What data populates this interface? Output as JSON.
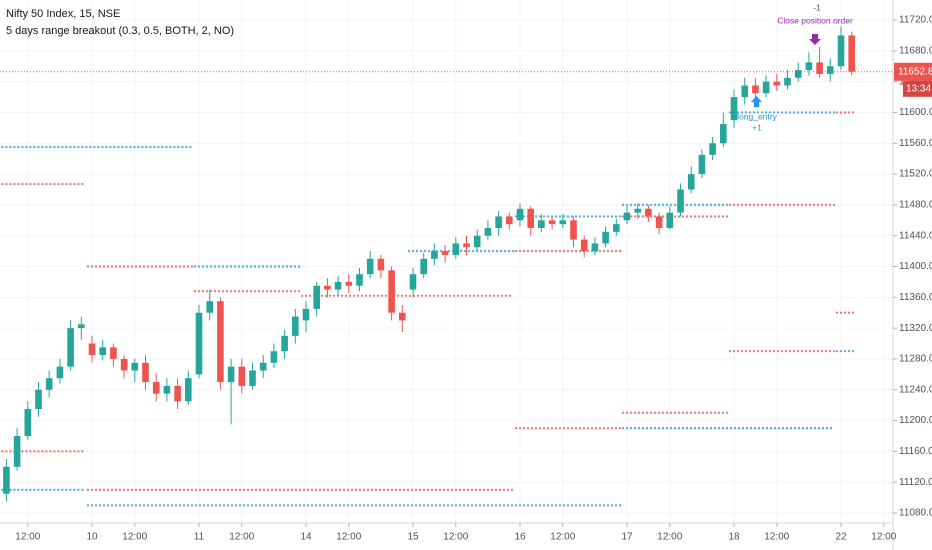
{
  "chart_data": {
    "type": "candlestick",
    "title": "Nifty 50 Index, 15, NSE",
    "subtitle": "5 days range breakout (0.3, 0.5, BOTH, 2, NO)",
    "categories": [
      null,
      null,
      "12:00",
      null,
      null,
      null,
      null,
      null,
      "10",
      null,
      null,
      null,
      "12:00",
      null,
      null,
      null,
      null,
      null,
      "11",
      null,
      null,
      null,
      "12:00",
      null,
      null,
      null,
      null,
      null,
      "14",
      null,
      null,
      null,
      "12:00",
      null,
      null,
      null,
      null,
      null,
      "15",
      null,
      null,
      null,
      "12:00",
      null,
      null,
      null,
      null,
      null,
      "16",
      null,
      null,
      null,
      "12:00",
      null,
      null,
      null,
      null,
      null,
      "17",
      null,
      null,
      null,
      "12:00",
      null,
      null,
      null,
      null,
      null,
      "18",
      null,
      null,
      null,
      "12:00",
      null,
      null,
      null,
      null,
      null,
      "22",
      null,
      null,
      null,
      "12:00",
      null
    ],
    "open": [
      11105,
      11140,
      11180,
      11215,
      11240,
      11255,
      11270,
      11320,
      11300,
      11285,
      11295,
      11280,
      11265,
      11275,
      11250,
      11235,
      11245,
      11225,
      11260,
      11340,
      11355,
      11250,
      11270,
      11245,
      11265,
      11275,
      11290,
      11310,
      11330,
      11345,
      11375,
      11370,
      11380,
      11375,
      11390,
      11410,
      11395,
      11340,
      11370,
      11390,
      11410,
      11420,
      11415,
      11430,
      11425,
      11440,
      11450,
      11465,
      11460,
      11475,
      11450,
      11460,
      11455,
      11460,
      11435,
      11420,
      11430,
      11445,
      11460,
      11470,
      11475,
      11465,
      11450,
      11470,
      11500,
      11520,
      11545,
      11560,
      11590,
      11620,
      11635,
      11625,
      11640,
      11635,
      11645,
      11655,
      11665,
      11650,
      11660,
      11700,
      null,
      null,
      null,
      null
    ],
    "high": [
      11150,
      11190,
      11225,
      11250,
      11265,
      11280,
      11330,
      11335,
      11310,
      11305,
      11300,
      11285,
      11280,
      11285,
      11262,
      11255,
      11255,
      11265,
      11350,
      11370,
      11360,
      11280,
      11280,
      11275,
      11285,
      11300,
      11318,
      11345,
      11355,
      11380,
      11385,
      11388,
      11390,
      11398,
      11420,
      11415,
      11400,
      11350,
      11398,
      11418,
      11430,
      11428,
      11438,
      11440,
      11448,
      11460,
      11472,
      11470,
      11482,
      11478,
      11468,
      11465,
      11468,
      11465,
      11440,
      11438,
      11452,
      11462,
      11478,
      11482,
      11480,
      11470,
      11478,
      11508,
      11530,
      11552,
      11568,
      11600,
      11630,
      11645,
      11645,
      11648,
      11650,
      11655,
      11665,
      11678,
      11685,
      11670,
      11712,
      11705,
      null,
      null,
      null,
      null
    ],
    "low": [
      11095,
      11135,
      11175,
      11205,
      11230,
      11248,
      11265,
      11305,
      11275,
      11278,
      11270,
      11255,
      11250,
      11240,
      11225,
      11225,
      11215,
      11220,
      11255,
      11330,
      11240,
      11195,
      11235,
      11240,
      11255,
      11268,
      11280,
      11300,
      11315,
      11335,
      11360,
      11362,
      11365,
      11368,
      11385,
      11385,
      11330,
      11315,
      11360,
      11385,
      11402,
      11405,
      11410,
      11415,
      11420,
      11435,
      11440,
      11448,
      11452,
      11440,
      11445,
      11448,
      11450,
      11425,
      11412,
      11415,
      11425,
      11440,
      11455,
      11462,
      11458,
      11442,
      11448,
      11465,
      11495,
      11515,
      11538,
      11555,
      11580,
      11610,
      11615,
      11620,
      11628,
      11630,
      11640,
      11648,
      11645,
      11640,
      11655,
      11648,
      null,
      null,
      null,
      null
    ],
    "close": [
      11140,
      11180,
      11215,
      11240,
      11255,
      11270,
      11320,
      11325,
      11285,
      11295,
      11280,
      11265,
      11275,
      11250,
      11235,
      11245,
      11225,
      11255,
      11340,
      11355,
      11250,
      11270,
      11245,
      11265,
      11275,
      11290,
      11310,
      11335,
      11345,
      11375,
      11370,
      11380,
      11375,
      11390,
      11410,
      11395,
      11340,
      11330,
      11390,
      11410,
      11420,
      11415,
      11430,
      11425,
      11440,
      11450,
      11465,
      11455,
      11475,
      11450,
      11460,
      11455,
      11460,
      11435,
      11420,
      11430,
      11445,
      11455,
      11470,
      11475,
      11465,
      11450,
      11470,
      11500,
      11520,
      11545,
      11560,
      11585,
      11620,
      11635,
      11625,
      11640,
      11635,
      11645,
      11655,
      11665,
      11650,
      11660,
      11700,
      11653,
      null,
      null,
      null,
      null
    ],
    "up_color": "#26a69a",
    "down_color": "#ef5350",
    "ylim": [
      11067,
      11746
    ],
    "yticks": [
      {
        "value": 11080,
        "label": "11080.00"
      },
      {
        "value": 11120,
        "label": "11120.00"
      },
      {
        "value": 11160,
        "label": "11160.00"
      },
      {
        "value": 11200,
        "label": "11200.00"
      },
      {
        "value": 11240,
        "label": "11240.00"
      },
      {
        "value": 11280,
        "label": "11280.00"
      },
      {
        "value": 11320,
        "label": "11320.00"
      },
      {
        "value": 11360,
        "label": "11360.00"
      },
      {
        "value": 11400,
        "label": "11400.00"
      },
      {
        "value": 11440,
        "label": "11440.00"
      },
      {
        "value": 11480,
        "label": "11480.00"
      },
      {
        "value": 11520,
        "label": "11520.00"
      },
      {
        "value": 11560,
        "label": "11560.00"
      },
      {
        "value": 11600,
        "label": "11600.00"
      },
      {
        "value": 11640,
        "label": "11640.00"
      },
      {
        "value": 11680,
        "label": "11680.00"
      },
      {
        "value": 11720,
        "label": "11720.00"
      }
    ],
    "grid": true,
    "levels": [
      {
        "color": "#5aaee6",
        "value": 11555,
        "from": 0,
        "to": 17
      },
      {
        "color": "#5aaee6",
        "value": 11110,
        "from": 0,
        "to": 7
      },
      {
        "color": "#5aaee6",
        "value": 11400,
        "from": 18,
        "to": 27
      },
      {
        "color": "#5aaee6",
        "value": 11420,
        "from": 38,
        "to": 47
      },
      {
        "color": "#5aaee6",
        "value": 11465,
        "from": 48,
        "to": 57
      },
      {
        "color": "#5aaee6",
        "value": 11480,
        "from": 58,
        "to": 67
      },
      {
        "color": "#5aaee6",
        "value": 11600,
        "from": 68,
        "to": 77
      },
      {
        "color": "#5aaee6",
        "value": 11290,
        "from": 78,
        "to": 79
      },
      {
        "color": "#5aaee6",
        "value": 11190,
        "from": 58,
        "to": 77
      },
      {
        "color": "#5aaee6",
        "value": 11090,
        "from": 8,
        "to": 57
      },
      {
        "color": "#f07b7b",
        "value": 11507,
        "from": 0,
        "to": 7
      },
      {
        "color": "#f07b7b",
        "value": 11160,
        "from": 0,
        "to": 7
      },
      {
        "color": "#f07b7b",
        "value": 11400,
        "from": 8,
        "to": 17
      },
      {
        "color": "#f07b7b",
        "value": 11110,
        "from": 8,
        "to": 47
      },
      {
        "color": "#f07b7b",
        "value": 11368,
        "from": 18,
        "to": 27
      },
      {
        "color": "#f07b7b",
        "value": 11362,
        "from": 28,
        "to": 47
      },
      {
        "color": "#f07b7b",
        "value": 11420,
        "from": 48,
        "to": 57
      },
      {
        "color": "#f07b7b",
        "value": 11190,
        "from": 48,
        "to": 57
      },
      {
        "color": "#f07b7b",
        "value": 11210,
        "from": 58,
        "to": 67
      },
      {
        "color": "#f07b7b",
        "value": 11465,
        "from": 58,
        "to": 67
      },
      {
        "color": "#f07b7b",
        "value": 11480,
        "from": 68,
        "to": 77
      },
      {
        "color": "#f07b7b",
        "value": 11290,
        "from": 68,
        "to": 77
      },
      {
        "color": "#f07b7b",
        "value": 11340,
        "from": 78,
        "to": 79
      },
      {
        "color": "#f07b7b",
        "value": 11600,
        "from": 78,
        "to": 79
      }
    ],
    "last_price": {
      "value": 11652.8,
      "label": "11652.80",
      "color": "#ef5350"
    },
    "countdown": "13:34",
    "annotations": [
      {
        "text": "-1",
        "color": "#555555"
      },
      {
        "text": "Close position order",
        "color": "#9c27b0"
      },
      {
        "text": "long_entry",
        "color": "#2196f3"
      },
      {
        "text": "+1",
        "color": "#2196f3"
      }
    ]
  }
}
